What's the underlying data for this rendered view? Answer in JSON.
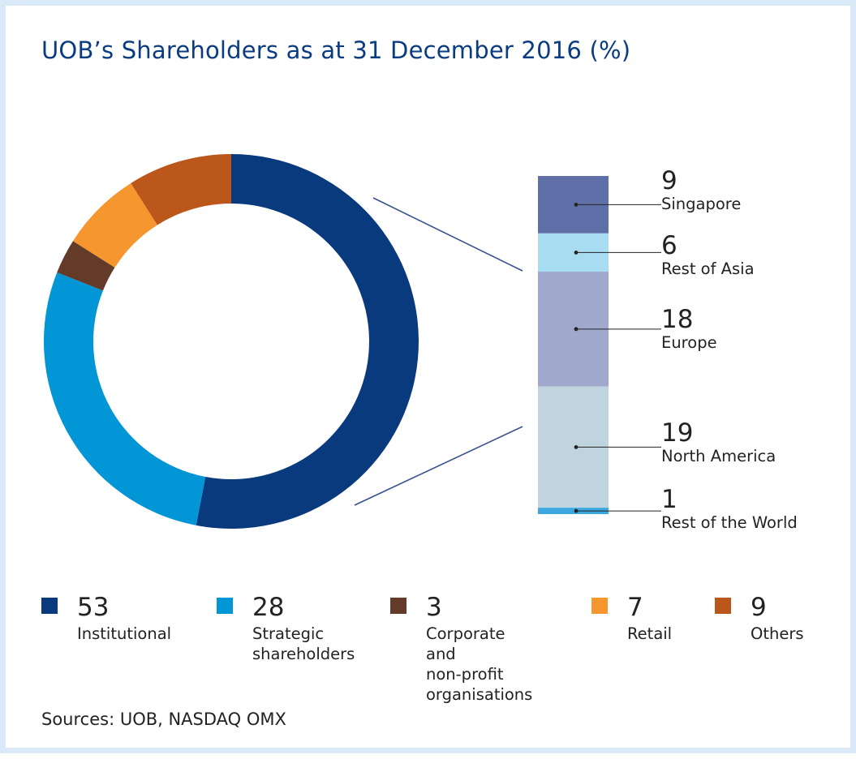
{
  "title": "UOB’s Shareholders as at 31 December 2016 (%)",
  "sources": "Sources: UOB, NASDAQ OMX",
  "chart_data": [
    {
      "type": "pie",
      "variant": "donut",
      "title": "UOB’s Shareholders as at 31 December 2016 (%)",
      "categories": [
        "Institutional",
        "Strategic shareholders",
        "Corporate and non-profit organisations",
        "Retail",
        "Others"
      ],
      "values": [
        53,
        28,
        3,
        7,
        9
      ],
      "labels": [
        "Institutional",
        "Strategic\nshareholders",
        "Corporate and\nnon-profit\norganisations",
        "Retail",
        "Others"
      ],
      "colors": [
        "#0a3a7e",
        "#0296d6",
        "#643a29",
        "#f6962f",
        "#bc571b"
      ],
      "legend_position": "bottom"
    },
    {
      "type": "bar",
      "variant": "stacked",
      "breakdown_of": "Institutional",
      "categories": [
        "Singapore",
        "Rest of Asia",
        "Europe",
        "North America",
        "Rest of the World"
      ],
      "values": [
        9,
        6,
        18,
        19,
        1
      ],
      "colors": [
        "#5f6fa8",
        "#a8dcf0",
        "#a0a8cd",
        "#c0d4df",
        "#3da8e0"
      ],
      "legend_position": "right"
    }
  ]
}
